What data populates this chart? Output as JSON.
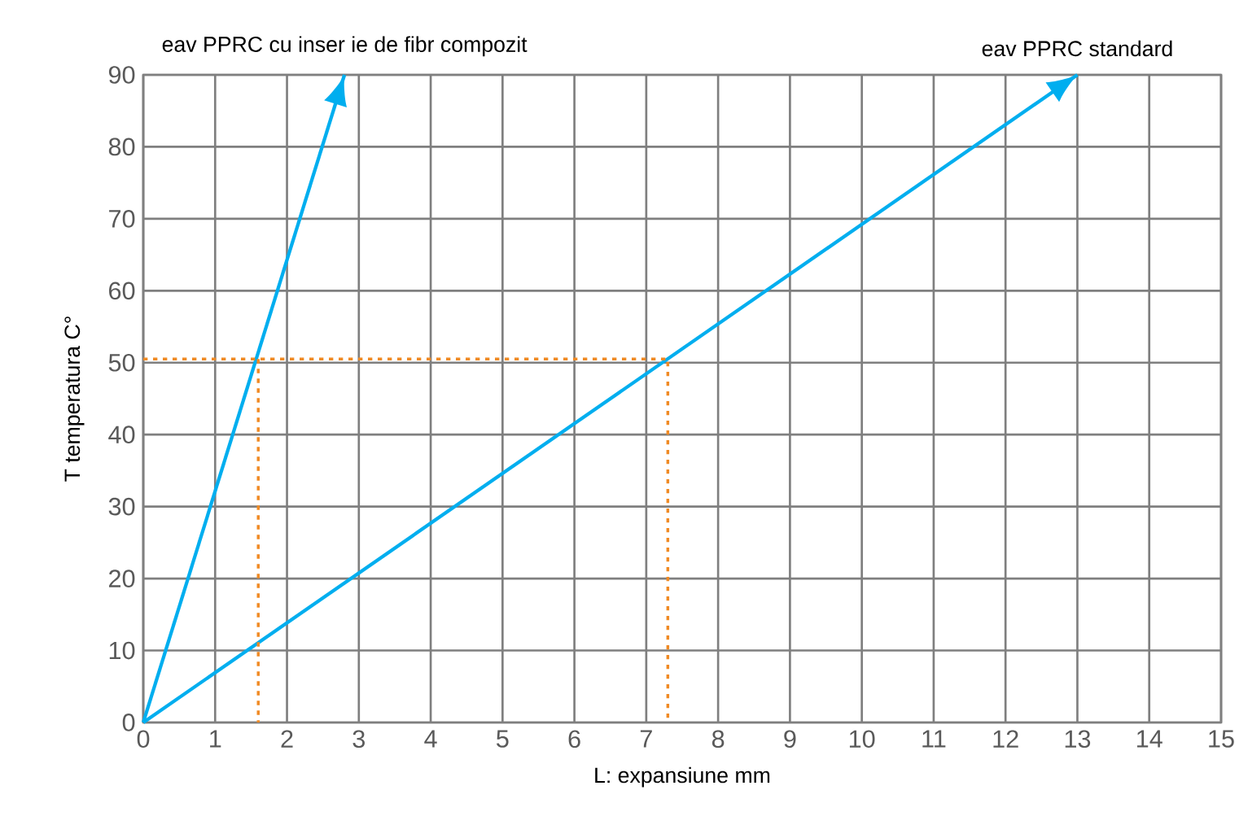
{
  "chart_data": {
    "type": "line",
    "xlabel": "L: expansiune mm",
    "ylabel": "T temperatura C°",
    "xlim": [
      0,
      15
    ],
    "ylim": [
      0,
      90
    ],
    "xticks": [
      0,
      1,
      2,
      3,
      4,
      5,
      6,
      7,
      8,
      9,
      10,
      11,
      12,
      13,
      14,
      15
    ],
    "yticks": [
      0,
      10,
      20,
      30,
      40,
      50,
      60,
      70,
      80,
      90
    ],
    "grid": true,
    "line_style": "solid",
    "series": [
      {
        "name": "eav   PPRC cu inser ie de fibr   compozit",
        "color": "#00aeef",
        "x": [
          0,
          2.8
        ],
        "values": [
          0,
          90
        ]
      },
      {
        "name": "eav   PPRC standard",
        "color": "#00aeef",
        "x": [
          0,
          13
        ],
        "values": [
          0,
          90
        ]
      },
      {
        "color": "#f08a24",
        "line_style": "dotted",
        "x": [
          0,
          7.3,
          7.3
        ],
        "values": [
          50.5,
          50.5,
          0
        ]
      },
      {
        "color": "#f08a24",
        "line_style": "dotted",
        "x": [
          1.6,
          1.6
        ],
        "values": [
          50.5,
          0
        ]
      }
    ]
  }
}
